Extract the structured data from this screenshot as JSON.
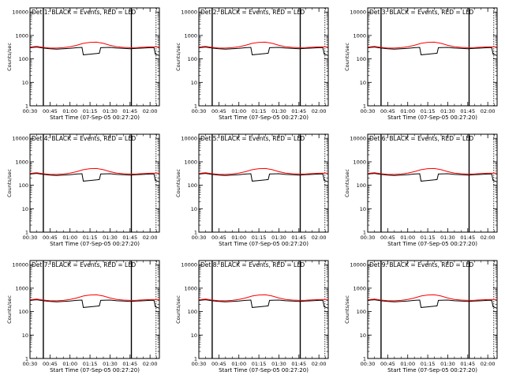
{
  "panels": [
    {
      "title": "Det 1: BLACK = Events, RED = LLD"
    },
    {
      "title": "Det 2: BLACK = Events, RED = LLD"
    },
    {
      "title": "Det 3: BLACK = Events, RED = LLD"
    },
    {
      "title": "Det 4: BLACK = Events, RED = LLD"
    },
    {
      "title": "Det 5: BLACK = Events, RED = LLD"
    },
    {
      "title": "Det 6: BLACK = Events, RED = LLD"
    },
    {
      "title": "Det 7: BLACK = Events, RED = LLD"
    },
    {
      "title": "Det 8: BLACK = Events, RED = LLD"
    },
    {
      "title": "Det 9: BLACK = Events, RED = LLD"
    }
  ],
  "axes": {
    "ylabel": "Counts/sec",
    "xlabel": "Start Time (07-Sep-05 00:27:20)",
    "xticks": [
      "00:30",
      "00:45",
      "01:00",
      "01:15",
      "01:30",
      "01:45",
      "02:00"
    ],
    "yticks": [
      "1",
      "10",
      "100",
      "1000",
      "10000"
    ]
  },
  "colors": {
    "events": "#000000",
    "lld": "#ff0000",
    "axes": "#000000"
  },
  "chart_data": {
    "type": "line",
    "layout": "3x3 grid of identical log-scale time series plots",
    "x_unit": "minutes after 00:30",
    "xlim": [
      0,
      97
    ],
    "ylim": [
      1,
      15000
    ],
    "yscale": "log",
    "vertical_markers": [
      10,
      76
    ],
    "series": [
      {
        "name": "Events",
        "color": "#000000",
        "x": [
          0,
          5,
          10,
          15,
          20,
          25,
          30,
          35,
          39,
          40,
          45,
          50,
          52,
          53,
          60,
          65,
          70,
          75,
          80,
          85,
          90,
          93,
          94,
          97
        ],
        "y": [
          300,
          320,
          290,
          270,
          260,
          270,
          280,
          300,
          310,
          150,
          160,
          170,
          175,
          300,
          310,
          290,
          280,
          270,
          280,
          290,
          300,
          300,
          160,
          140
        ]
      },
      {
        "name": "LLD",
        "color": "#ff0000",
        "x": [
          0,
          5,
          10,
          15,
          20,
          25,
          30,
          35,
          40,
          45,
          50,
          55,
          60,
          65,
          70,
          75,
          80,
          85,
          90,
          97
        ],
        "y": [
          320,
          340,
          310,
          290,
          290,
          300,
          330,
          380,
          460,
          510,
          520,
          460,
          380,
          330,
          310,
          300,
          305,
          315,
          325,
          330
        ]
      }
    ]
  }
}
